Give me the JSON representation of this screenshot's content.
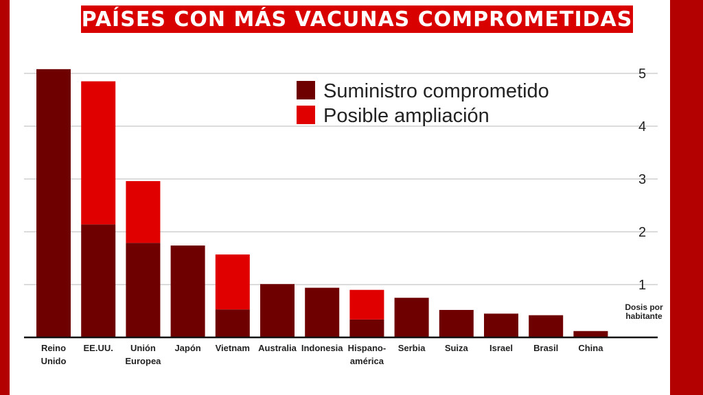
{
  "title": "PAÍSES CON MÁS VACUNAS COMPROMETIDAS",
  "colors": {
    "background": "#b30000",
    "title_bar": "#d90000",
    "committed": "#6e0000",
    "expansion": "#e00000"
  },
  "chart_data": {
    "type": "bar",
    "stacked": true,
    "categories": [
      "Reino\nUnido",
      "EE.UU.",
      "Unión\nEuropea",
      "Japón",
      "Vietnam",
      "Australia",
      "Indonesia",
      "Hispano-\namérica",
      "Serbia",
      "Suiza",
      "Israel",
      "Brasil",
      "China"
    ],
    "series": [
      {
        "name": "Suministro comprometido",
        "color": "#6e0000",
        "values": [
          5.08,
          2.14,
          1.79,
          1.74,
          0.53,
          1.01,
          0.94,
          0.34,
          0.75,
          0.52,
          0.45,
          0.42,
          0.12
        ]
      },
      {
        "name": "Posible ampliación",
        "color": "#e00000",
        "values": [
          0,
          2.71,
          1.17,
          0,
          1.04,
          0,
          0,
          0.56,
          0,
          0,
          0,
          0,
          0
        ]
      }
    ],
    "ylim": [
      0,
      5
    ],
    "yticks": [
      1,
      2,
      3,
      4,
      5
    ],
    "ylabel": "Dosis por\nhabitante",
    "y_axis_position": "right",
    "grid": true,
    "legend_position": "top-right"
  }
}
